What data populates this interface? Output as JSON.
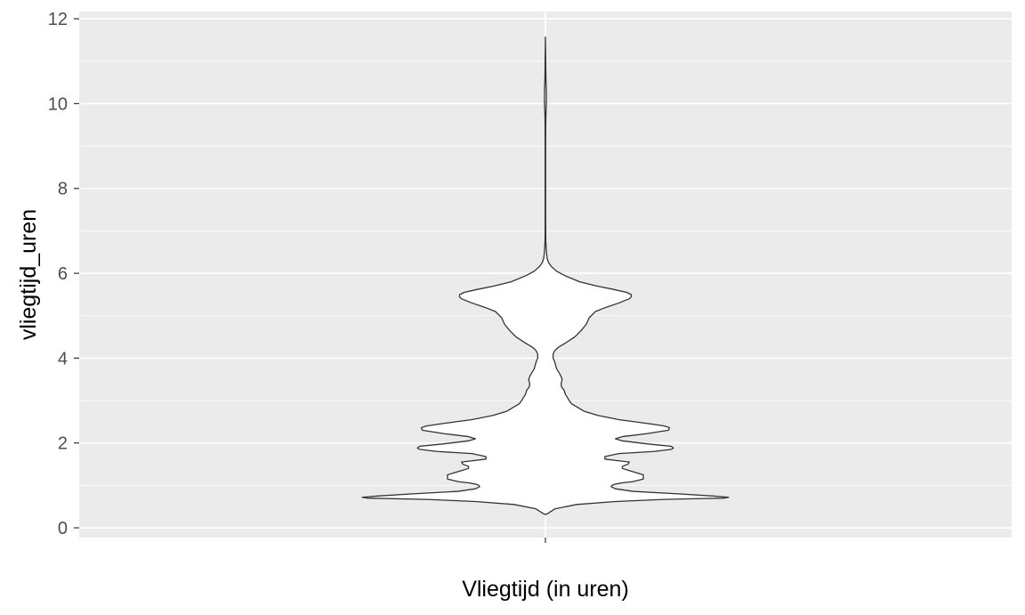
{
  "chart_data": {
    "type": "violin",
    "title": "",
    "xlabel": "Vliegtijd (in uren)",
    "ylabel": "vliegtijd_uren",
    "ylim": [
      -0.23,
      12.17
    ],
    "y_ticks": [
      0,
      2,
      4,
      6,
      8,
      10,
      12
    ],
    "x_ticks": [
      ""
    ],
    "grid": true,
    "legend": "none",
    "colors": {
      "panel": "#ebebeb",
      "grid": "#ffffff",
      "violin_fill": "#ffffff",
      "violin_outline": "#333333"
    },
    "density_max_relative_width": 0.75,
    "density_profile": {
      "y": [
        0.32,
        0.45,
        0.55,
        0.62,
        0.67,
        0.7,
        0.72,
        0.75,
        0.8,
        0.86,
        0.92,
        0.97,
        1.0,
        1.03,
        1.06,
        1.09,
        1.15,
        1.25,
        1.35,
        1.4,
        1.45,
        1.5,
        1.55,
        1.58,
        1.62,
        1.68,
        1.75,
        1.8,
        1.85,
        1.88,
        1.92,
        1.98,
        2.05,
        2.1,
        2.15,
        2.22,
        2.3,
        2.36,
        2.4,
        2.45,
        2.55,
        2.65,
        2.75,
        2.85,
        2.92,
        3.0,
        3.15,
        3.25,
        3.32,
        3.4,
        3.5,
        3.6,
        3.75,
        3.9,
        4.0,
        4.1,
        4.18,
        4.25,
        4.35,
        4.5,
        4.65,
        4.8,
        4.95,
        5.1,
        5.2,
        5.3,
        5.4,
        5.45,
        5.5,
        5.55,
        5.62,
        5.7,
        5.8,
        5.95,
        6.05,
        6.15,
        6.25,
        6.35,
        6.45,
        6.55,
        6.65,
        6.75,
        6.85,
        7.0,
        7.5,
        8.0,
        8.5,
        9.0,
        9.3,
        9.5,
        9.7,
        9.9,
        10.1,
        10.3,
        10.5,
        10.7,
        10.9,
        11.1,
        11.3,
        11.57
      ],
      "relative_width": [
        0.003,
        0.028,
        0.09,
        0.2,
        0.34,
        0.51,
        0.524,
        0.48,
        0.38,
        0.25,
        0.2,
        0.188,
        0.19,
        0.2,
        0.22,
        0.25,
        0.28,
        0.28,
        0.24,
        0.22,
        0.22,
        0.236,
        0.24,
        0.21,
        0.17,
        0.17,
        0.21,
        0.31,
        0.36,
        0.366,
        0.36,
        0.29,
        0.22,
        0.2,
        0.22,
        0.29,
        0.352,
        0.355,
        0.34,
        0.3,
        0.21,
        0.15,
        0.11,
        0.09,
        0.075,
        0.068,
        0.057,
        0.053,
        0.046,
        0.045,
        0.048,
        0.043,
        0.032,
        0.027,
        0.022,
        0.022,
        0.027,
        0.036,
        0.056,
        0.084,
        0.102,
        0.117,
        0.125,
        0.143,
        0.174,
        0.21,
        0.24,
        0.246,
        0.245,
        0.232,
        0.195,
        0.147,
        0.098,
        0.054,
        0.032,
        0.018,
        0.009,
        0.005,
        0.0035,
        0.0025,
        0.0017,
        0.0012,
        0.0009,
        0.0008,
        0.0007,
        0.0007,
        0.0007,
        0.0007,
        0.0008,
        0.0009,
        0.0013,
        0.0022,
        0.0028,
        0.0026,
        0.0018,
        0.0012,
        0.0009,
        0.0007,
        0.0004,
        0.0
      ]
    }
  }
}
